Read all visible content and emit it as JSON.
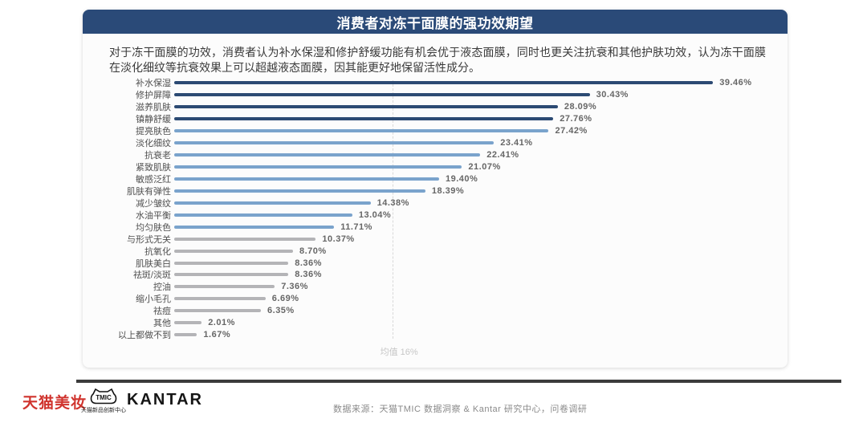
{
  "header": {
    "title": "消费者对冻干面膜的强功效期望"
  },
  "description": "对于冻干面膜的功效，消费者认为补水保湿和修护舒缓功能有机会优于液态面膜，同时也更关注抗衰和其他护肤功效，认为冻干面膜在淡化细纹等抗衰效果上可以超越液态面膜，因其能更好地保留活性成分。",
  "chart_data": {
    "type": "bar",
    "orientation": "horizontal",
    "title": "消费者对冻干面膜的强功效期望",
    "categories": [
      "补水保湿",
      "修护屏障",
      "滋养肌肤",
      "镇静舒缓",
      "提亮肤色",
      "淡化细纹",
      "抗衰老",
      "紧致肌肤",
      "敏感泛红",
      "肌肤有弹性",
      "减少皱纹",
      "水油平衡",
      "均匀肤色",
      "与形式无关",
      "抗氧化",
      "肌肤美白",
      "祛斑/淡斑",
      "控油",
      "缩小毛孔",
      "祛痘",
      "其他",
      "以上都做不到"
    ],
    "values": [
      39.46,
      30.43,
      28.09,
      27.76,
      27.42,
      23.41,
      22.41,
      21.07,
      19.4,
      18.39,
      14.38,
      13.04,
      11.71,
      10.37,
      8.7,
      8.36,
      8.36,
      7.36,
      6.69,
      6.35,
      2.01,
      1.67
    ],
    "value_labels": [
      "39.46%",
      "30.43%",
      "28.09%",
      "27.76%",
      "27.42%",
      "23.41%",
      "22.41%",
      "21.07%",
      "19.40%",
      "18.39%",
      "14.38%",
      "13.04%",
      "11.71%",
      "10.37%",
      "8.70%",
      "8.36%",
      "8.36%",
      "7.36%",
      "6.69%",
      "6.35%",
      "2.01%",
      "1.67%"
    ],
    "bar_tiers": [
      "dark",
      "dark",
      "dark",
      "dark",
      "mid",
      "mid",
      "mid",
      "mid",
      "mid",
      "mid",
      "mid",
      "mid",
      "mid",
      "gray",
      "gray",
      "gray",
      "gray",
      "gray",
      "gray",
      "gray",
      "gray",
      "gray"
    ],
    "palette": {
      "dark": "#2c4a73",
      "mid": "#7aa3cc",
      "gray": "#b4b4b7"
    },
    "xlim": [
      0,
      43.5
    ],
    "xlabel": "",
    "ylabel": "",
    "grid": "mean-line-only",
    "legend_position": "none",
    "mean_line": {
      "value": 16,
      "label": "均值 16%"
    }
  },
  "footer": {
    "tmall_beauty_logo": "天猫美妆",
    "tmic_logo_text": "TMIC",
    "tmic_logo_subtext": "天猫新品创新中心",
    "kantar_logo": "KANTAR",
    "source": "数据来源：天猫TMIC 数据洞察 & Kantar 研究中心，问卷调研"
  },
  "colors": {
    "header_bg": "#2a4a78",
    "card_bg": "#fcfcfc",
    "divider": "#3b3b3b",
    "tmall_red": "#d0342e",
    "mean_line": "#d8d8d8"
  }
}
